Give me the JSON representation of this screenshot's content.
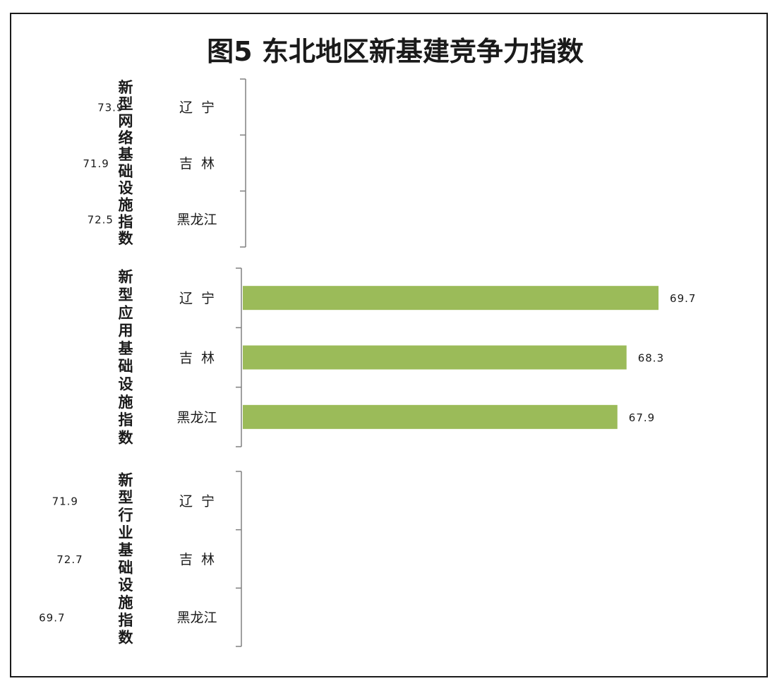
{
  "chart_data": {
    "type": "bar",
    "orientation": "horizontal",
    "title": "图5 东北地区新基建竞争力指数",
    "groups": [
      {
        "name": "新型网络基础设施指数",
        "color": "#b0544c",
        "categories": [
          "辽  宁",
          "吉  林",
          "黑龙江"
        ],
        "values": [
          73.9,
          71.9,
          72.5
        ]
      },
      {
        "name": "新型应用基础设施指数",
        "color": "#9bbb59",
        "categories": [
          "辽  宁",
          "吉  林",
          "黑龙江"
        ],
        "values": [
          69.7,
          68.3,
          67.9
        ]
      },
      {
        "name": "新型行业基础设施指数",
        "color": "#e89a55",
        "categories": [
          "辽  宁",
          "吉  林",
          "黑龙江"
        ],
        "values": [
          71.9,
          72.7,
          69.7
        ]
      }
    ],
    "grid": false,
    "legend": "none"
  }
}
